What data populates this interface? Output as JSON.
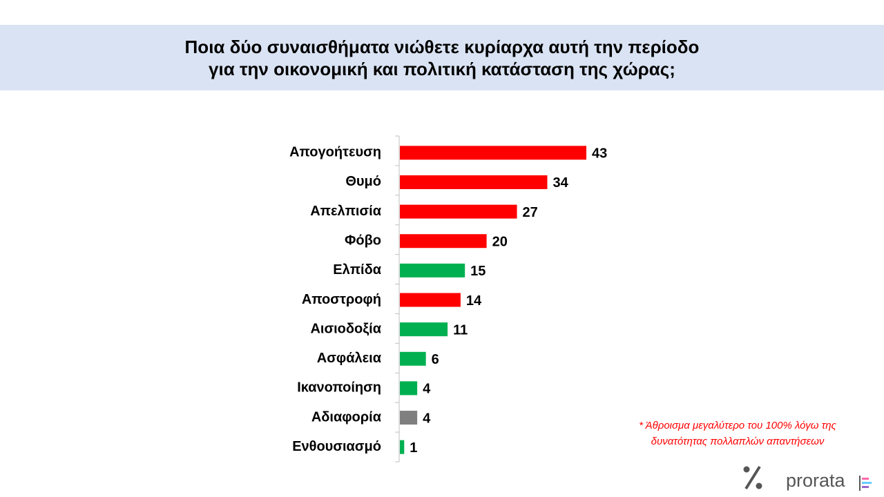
{
  "chart_data": {
    "type": "barh",
    "title": [
      "Ποια δύο συναισθήματα νιώθετε κυρίαρχα αυτή την περίοδο",
      "για την οικονομική και πολιτική κατάσταση της χώρας;"
    ],
    "categories": [
      "Απογοήτευση",
      "Θυμό",
      "Απελπισία",
      "Φόβο",
      "Ελπίδα",
      "Αποστροφή",
      "Αισιοδοξία",
      "Ασφάλεια",
      "Ικανοποίηση",
      "Αδιαφορία",
      "Ενθουσιασμό"
    ],
    "values": [
      43,
      34,
      27,
      20,
      15,
      14,
      11,
      6,
      4,
      4,
      1
    ],
    "colors": [
      "#ff0000",
      "#ff0000",
      "#ff0000",
      "#ff0000",
      "#00b050",
      "#ff0000",
      "#00b050",
      "#00b050",
      "#00b050",
      "#7f7f7f",
      "#00b050"
    ],
    "note": [
      "* Άθροισμα μεγαλύτερο του 100% λόγω της",
      "δυνατότητας πολλαπλών απαντήσεων"
    ],
    "logo": "prorata"
  }
}
